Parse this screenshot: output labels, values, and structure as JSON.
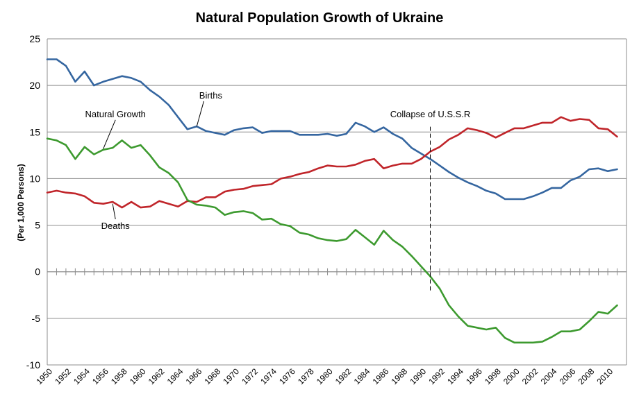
{
  "chart_data": {
    "type": "line",
    "title": "Natural Population Growth of Ukraine",
    "ylabel": "(Per 1,000 Persons)",
    "xlabel": "",
    "xlim": [
      1950,
      2012
    ],
    "ylim": [
      -10,
      25
    ],
    "yticks": [
      -10,
      -5,
      0,
      5,
      10,
      15,
      20,
      25
    ],
    "xtick_labels": [
      "1950",
      "1952",
      "1954",
      "1956",
      "1958",
      "1960",
      "1962",
      "1964",
      "1966",
      "1968",
      "1970",
      "1972",
      "1974",
      "1976",
      "1978",
      "1980",
      "1982",
      "1984",
      "1986",
      "1988",
      "1990",
      "1992",
      "1994",
      "1996",
      "1998",
      "2000",
      "2002",
      "2004",
      "2006",
      "2008",
      "2010"
    ],
    "grid": "horizontal",
    "legend": "none",
    "x": [
      1950,
      1951,
      1952,
      1953,
      1954,
      1955,
      1956,
      1957,
      1958,
      1959,
      1960,
      1961,
      1962,
      1963,
      1964,
      1965,
      1966,
      1967,
      1968,
      1969,
      1970,
      1971,
      1972,
      1973,
      1974,
      1975,
      1976,
      1977,
      1978,
      1979,
      1980,
      1981,
      1982,
      1983,
      1984,
      1985,
      1986,
      1987,
      1988,
      1989,
      1990,
      1991,
      1992,
      1993,
      1994,
      1995,
      1996,
      1997,
      1998,
      1999,
      2000,
      2001,
      2002,
      2003,
      2004,
      2005,
      2006,
      2007,
      2008,
      2009,
      2010,
      2011
    ],
    "series": [
      {
        "name": "Births",
        "color": "#3566a0",
        "values": [
          22.8,
          22.8,
          22.1,
          20.4,
          21.5,
          20.0,
          20.4,
          20.7,
          21.0,
          20.8,
          20.4,
          19.5,
          18.8,
          17.9,
          16.6,
          15.3,
          15.6,
          15.1,
          14.9,
          14.7,
          15.2,
          15.4,
          15.5,
          14.9,
          15.1,
          15.1,
          15.1,
          14.7,
          14.7,
          14.7,
          14.8,
          14.6,
          14.8,
          16.0,
          15.6,
          15.0,
          15.5,
          14.8,
          14.3,
          13.3,
          12.7,
          12.1,
          11.4,
          10.7,
          10.1,
          9.6,
          9.2,
          8.7,
          8.4,
          7.8,
          7.8,
          7.8,
          8.1,
          8.5,
          9.0,
          9.0,
          9.8,
          10.2,
          11.0,
          11.1,
          10.8,
          11.0
        ]
      },
      {
        "name": "Deaths",
        "color": "#c0252a",
        "values": [
          8.5,
          8.7,
          8.5,
          8.4,
          8.1,
          7.4,
          7.3,
          7.5,
          6.9,
          7.5,
          6.9,
          7.0,
          7.6,
          7.3,
          7.0,
          7.6,
          7.5,
          8.0,
          8.0,
          8.6,
          8.8,
          8.9,
          9.2,
          9.3,
          9.4,
          10.0,
          10.2,
          10.5,
          10.7,
          11.1,
          11.4,
          11.3,
          11.3,
          11.5,
          11.9,
          12.1,
          11.1,
          11.4,
          11.6,
          11.6,
          12.1,
          12.9,
          13.4,
          14.2,
          14.7,
          15.4,
          15.2,
          14.9,
          14.4,
          14.9,
          15.4,
          15.4,
          15.7,
          16.0,
          16.0,
          16.6,
          16.2,
          16.4,
          16.3,
          15.4,
          15.3,
          14.5
        ]
      },
      {
        "name": "Natural Growth",
        "color": "#3d9a2f",
        "values": [
          14.3,
          14.1,
          13.6,
          12.1,
          13.4,
          12.6,
          13.1,
          13.3,
          14.1,
          13.3,
          13.6,
          12.5,
          11.2,
          10.6,
          9.6,
          7.7,
          7.2,
          7.1,
          6.9,
          6.1,
          6.4,
          6.5,
          6.3,
          5.6,
          5.7,
          5.1,
          4.9,
          4.2,
          4.0,
          3.6,
          3.4,
          3.3,
          3.5,
          4.5,
          3.7,
          2.9,
          4.4,
          3.4,
          2.7,
          1.7,
          0.6,
          -0.5,
          -1.8,
          -3.6,
          -4.8,
          -5.8,
          -6.0,
          -6.2,
          -6.0,
          -7.1,
          -7.6,
          -7.6,
          -7.6,
          -7.5,
          -7.0,
          -6.4,
          -6.4,
          -6.2,
          -5.3,
          -4.3,
          -4.5,
          -3.6
        ]
      }
    ],
    "annotations": [
      {
        "text": "Births",
        "x": 1966.0,
        "y": 15.6,
        "tx": 1967.5,
        "ty": 18.6
      },
      {
        "text": "Natural Growth",
        "x": 1956.0,
        "y": 13.2,
        "tx": 1957.3,
        "ty": 16.6
      },
      {
        "text": "Deaths",
        "x": 1957.0,
        "y": 7.3,
        "tx": 1957.3,
        "ty": 4.6
      },
      {
        "text": "Collapse of U.S.S.R",
        "x": 1991.0,
        "y": -2.0,
        "tx": 1991.0,
        "ty": 16.6
      }
    ],
    "event_line": {
      "x": 1991.0,
      "y_from": -2.0,
      "y_to": 15.6,
      "style": "dashed"
    }
  }
}
